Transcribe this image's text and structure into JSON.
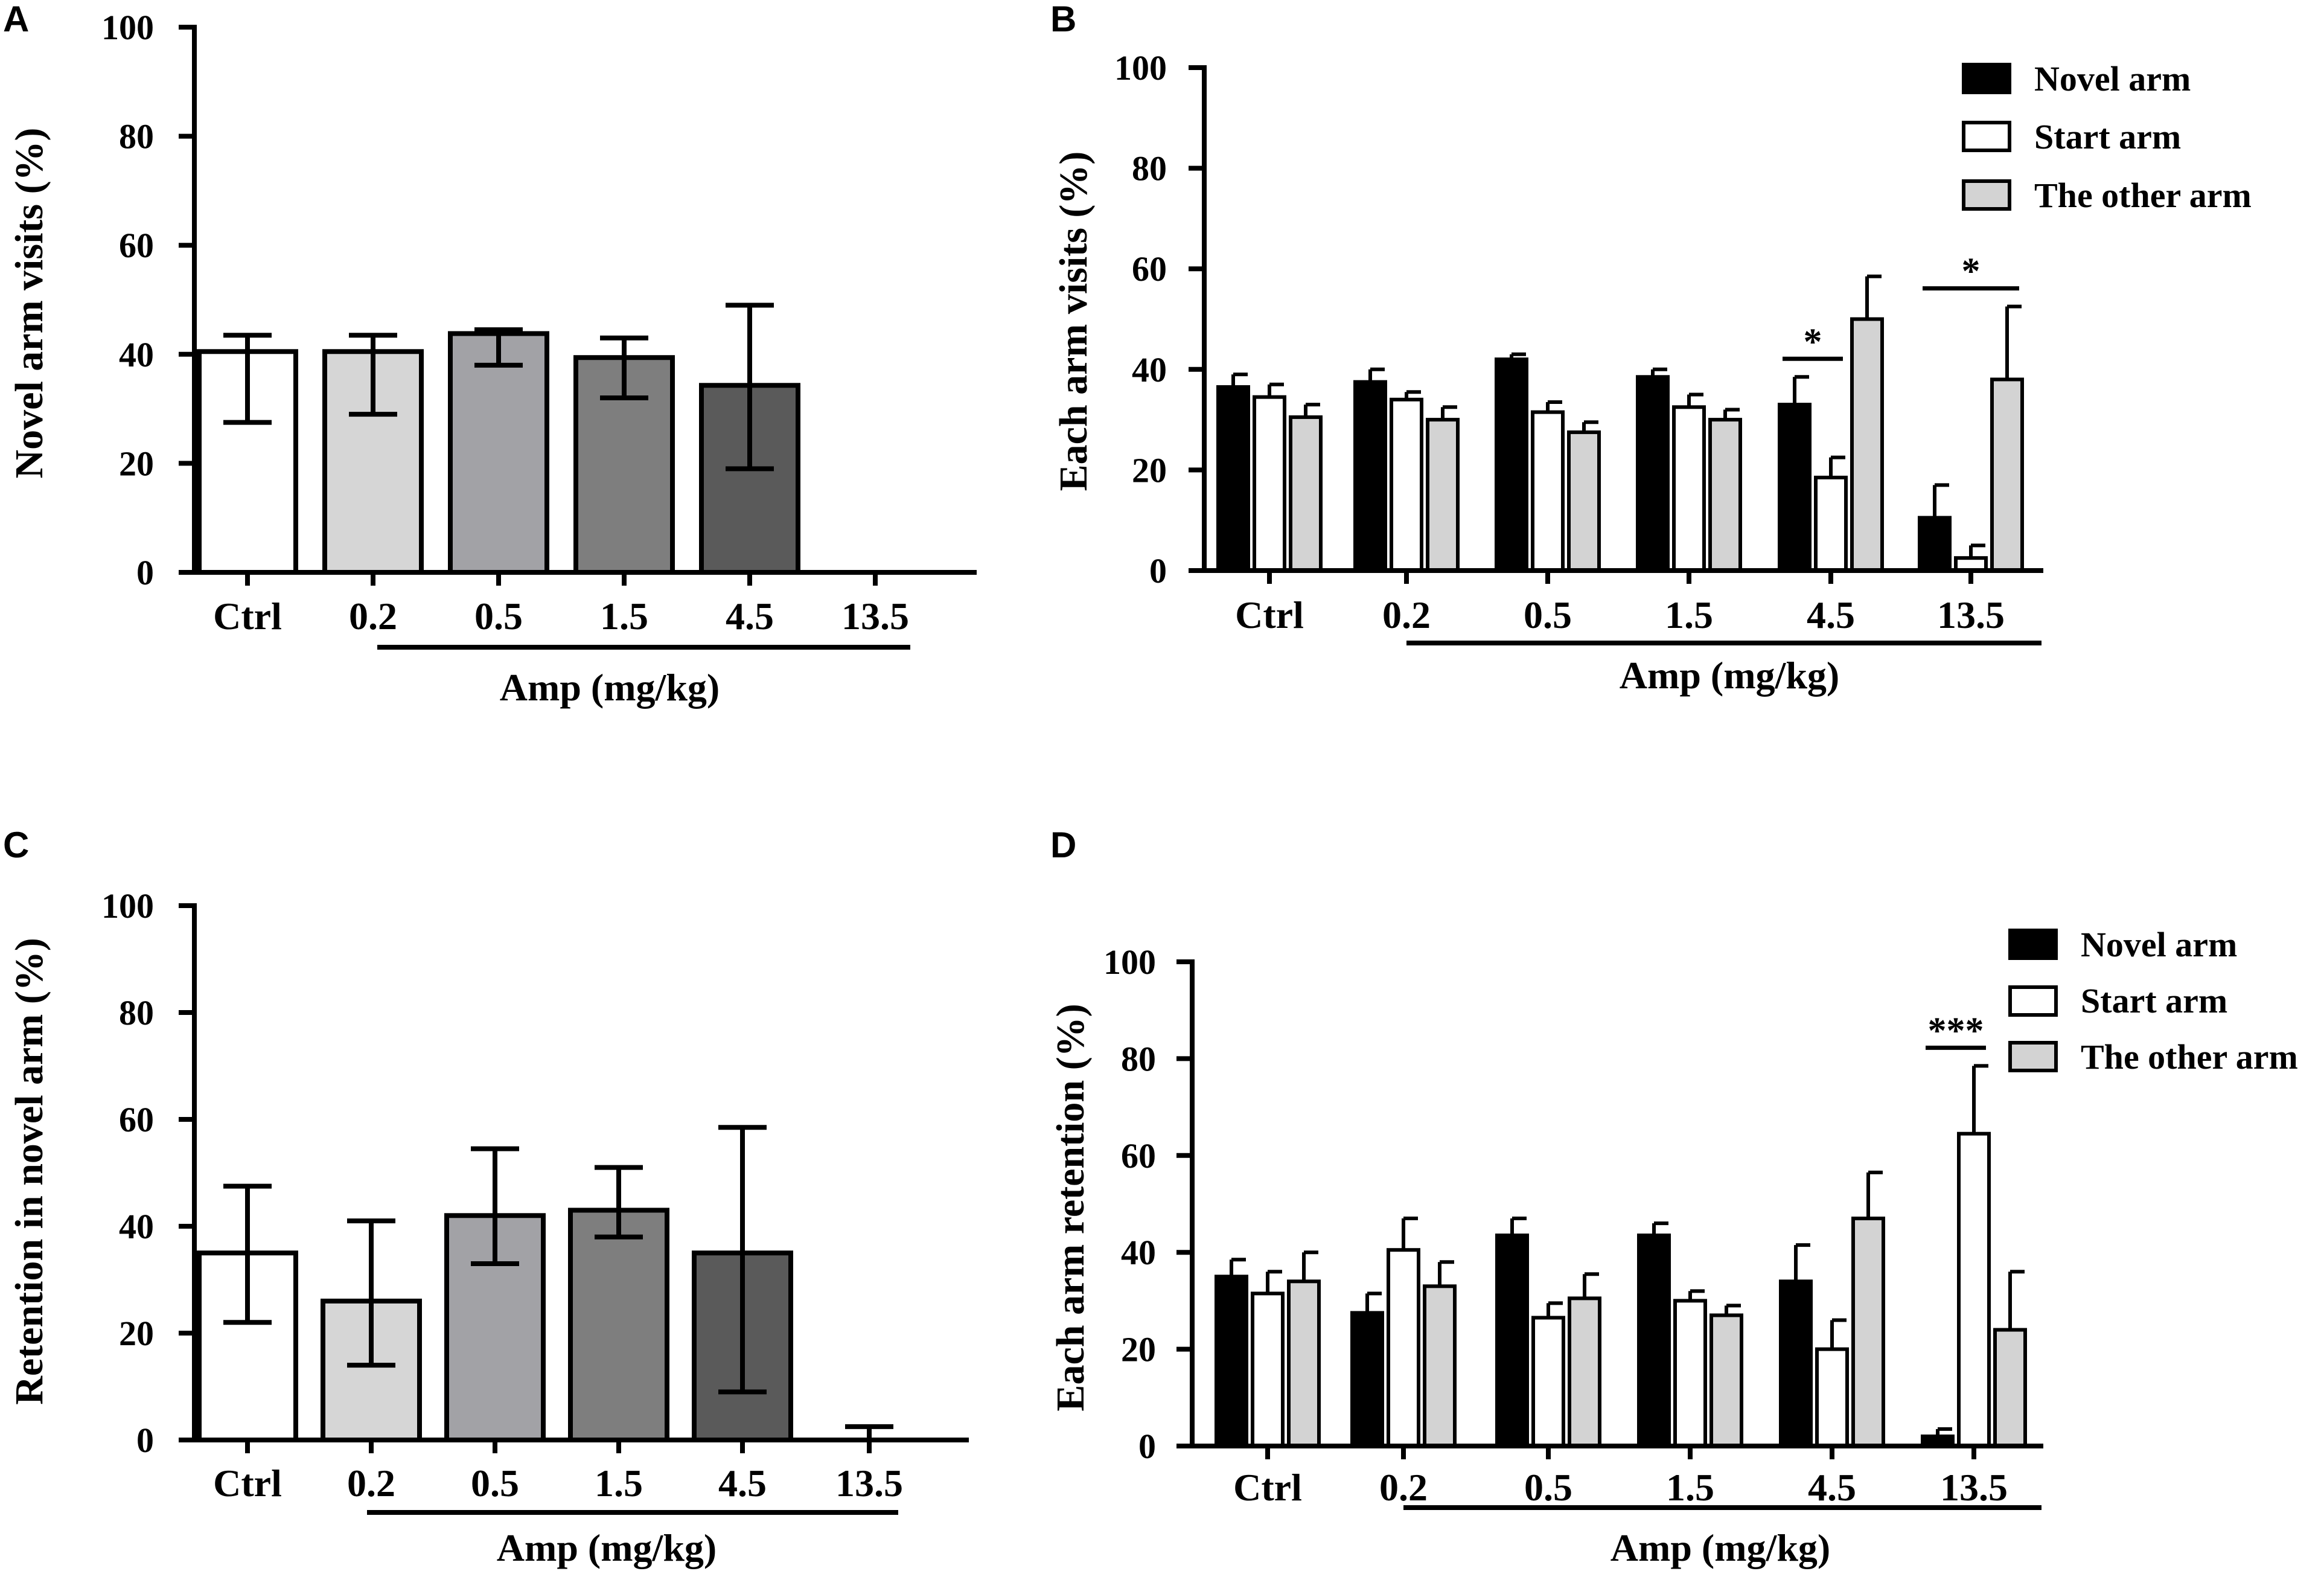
{
  "colors": {
    "axis": "#000000",
    "novel": "#000000",
    "start": "#ffffff",
    "other": "#d3d3d3",
    "ctrl": "#ffffff",
    "d02": "#d6d6d6",
    "d05": "#a2a2a6",
    "d15": "#7e7e7e",
    "d45": "#5a5a5a",
    "d135": "#3a3a3a"
  },
  "chart_data": [
    {
      "panel": "A",
      "type": "bar",
      "ylabel": "Novel arm visits (%)",
      "xlabel": "Amp (mg/kg)",
      "ylim": [
        0,
        100
      ],
      "yticks": [
        "0",
        "20",
        "40",
        "60",
        "80",
        "100"
      ],
      "categories": [
        "Ctrl",
        "0.2",
        "0.5",
        "1.5",
        "4.5",
        "13.5"
      ],
      "series": [
        {
          "name": "Novel arm visits",
          "values": [
            40.5,
            40.5,
            43.8,
            39.4,
            34.3,
            0
          ],
          "err_low": [
            27.5,
            29,
            38,
            32,
            19,
            0
          ],
          "err_high": [
            43.5,
            43.5,
            44.5,
            43,
            49,
            0
          ]
        }
      ],
      "significance": []
    },
    {
      "panel": "B",
      "type": "bar",
      "ylabel": "Each arm visits (%)",
      "xlabel": "Amp (mg/kg)",
      "ylim": [
        0,
        100
      ],
      "yticks": [
        "0",
        "20",
        "40",
        "60",
        "80",
        "100"
      ],
      "categories": [
        "Ctrl",
        "0.2",
        "0.5",
        "1.5",
        "4.5",
        "13.5"
      ],
      "legend": [
        "Novel arm",
        "Start arm",
        "The other arm"
      ],
      "series": [
        {
          "name": "Novel arm",
          "values": [
            36.5,
            37.5,
            42,
            38.5,
            33,
            10.5
          ],
          "err": [
            2.5,
            2.5,
            1,
            1.5,
            5.5,
            6.5
          ]
        },
        {
          "name": "Start arm",
          "values": [
            34.5,
            34,
            31.5,
            32.5,
            18.5,
            2.5
          ],
          "err": [
            2.5,
            1.5,
            2,
            2.5,
            4,
            2.5
          ]
        },
        {
          "name": "The other arm",
          "values": [
            30.5,
            30,
            27.5,
            30,
            50,
            38
          ],
          "err": [
            2.5,
            2.5,
            2,
            2,
            8.5,
            14.5
          ]
        }
      ],
      "significance": [
        {
          "category": "4.5",
          "from": "Novel arm",
          "to": "Start arm",
          "label": "*"
        },
        {
          "category": "13.5",
          "from": "Novel arm",
          "to": "The other arm",
          "label": "*"
        }
      ]
    },
    {
      "panel": "C",
      "type": "bar",
      "ylabel": "Retention in novel arm (%)",
      "xlabel": "Amp (mg/kg)",
      "ylim": [
        0,
        100
      ],
      "yticks": [
        "0",
        "20",
        "40",
        "60",
        "80",
        "100"
      ],
      "categories": [
        "Ctrl",
        "0.2",
        "0.5",
        "1.5",
        "4.5",
        "13.5"
      ],
      "series": [
        {
          "name": "Retention in novel arm",
          "values": [
            35,
            26,
            42,
            43,
            35,
            0
          ],
          "err_low": [
            22,
            14,
            33,
            38,
            9,
            0
          ],
          "err_high": [
            47.5,
            41,
            54.5,
            51,
            58.5,
            2.5
          ]
        }
      ],
      "significance": []
    },
    {
      "panel": "D",
      "type": "bar",
      "ylabel": "Each arm retention (%)",
      "xlabel": "Amp (mg/kg)",
      "ylim": [
        0,
        100
      ],
      "yticks": [
        "0",
        "20",
        "40",
        "60",
        "80",
        "100"
      ],
      "categories": [
        "Ctrl",
        "0.2",
        "0.5",
        "1.5",
        "4.5",
        "13.5"
      ],
      "legend": [
        "Novel arm",
        "Start arm",
        "The other arm"
      ],
      "series": [
        {
          "name": "Novel arm",
          "values": [
            35,
            27.5,
            43.5,
            43.5,
            34,
            2
          ],
          "err": [
            3.5,
            4,
            3.5,
            2.5,
            7.5,
            1.5
          ]
        },
        {
          "name": "Start arm",
          "values": [
            31.5,
            40.5,
            26.5,
            30,
            20,
            64.5
          ],
          "err": [
            4.5,
            6.5,
            3,
            2,
            6,
            14
          ]
        },
        {
          "name": "The other arm",
          "values": [
            34,
            33,
            30.5,
            27,
            47,
            24
          ],
          "err": [
            6,
            5,
            5,
            2,
            9.5,
            12
          ]
        }
      ],
      "significance": [
        {
          "category": "13.5",
          "from": "Novel arm",
          "to": "Start arm",
          "label": "***"
        }
      ]
    }
  ]
}
